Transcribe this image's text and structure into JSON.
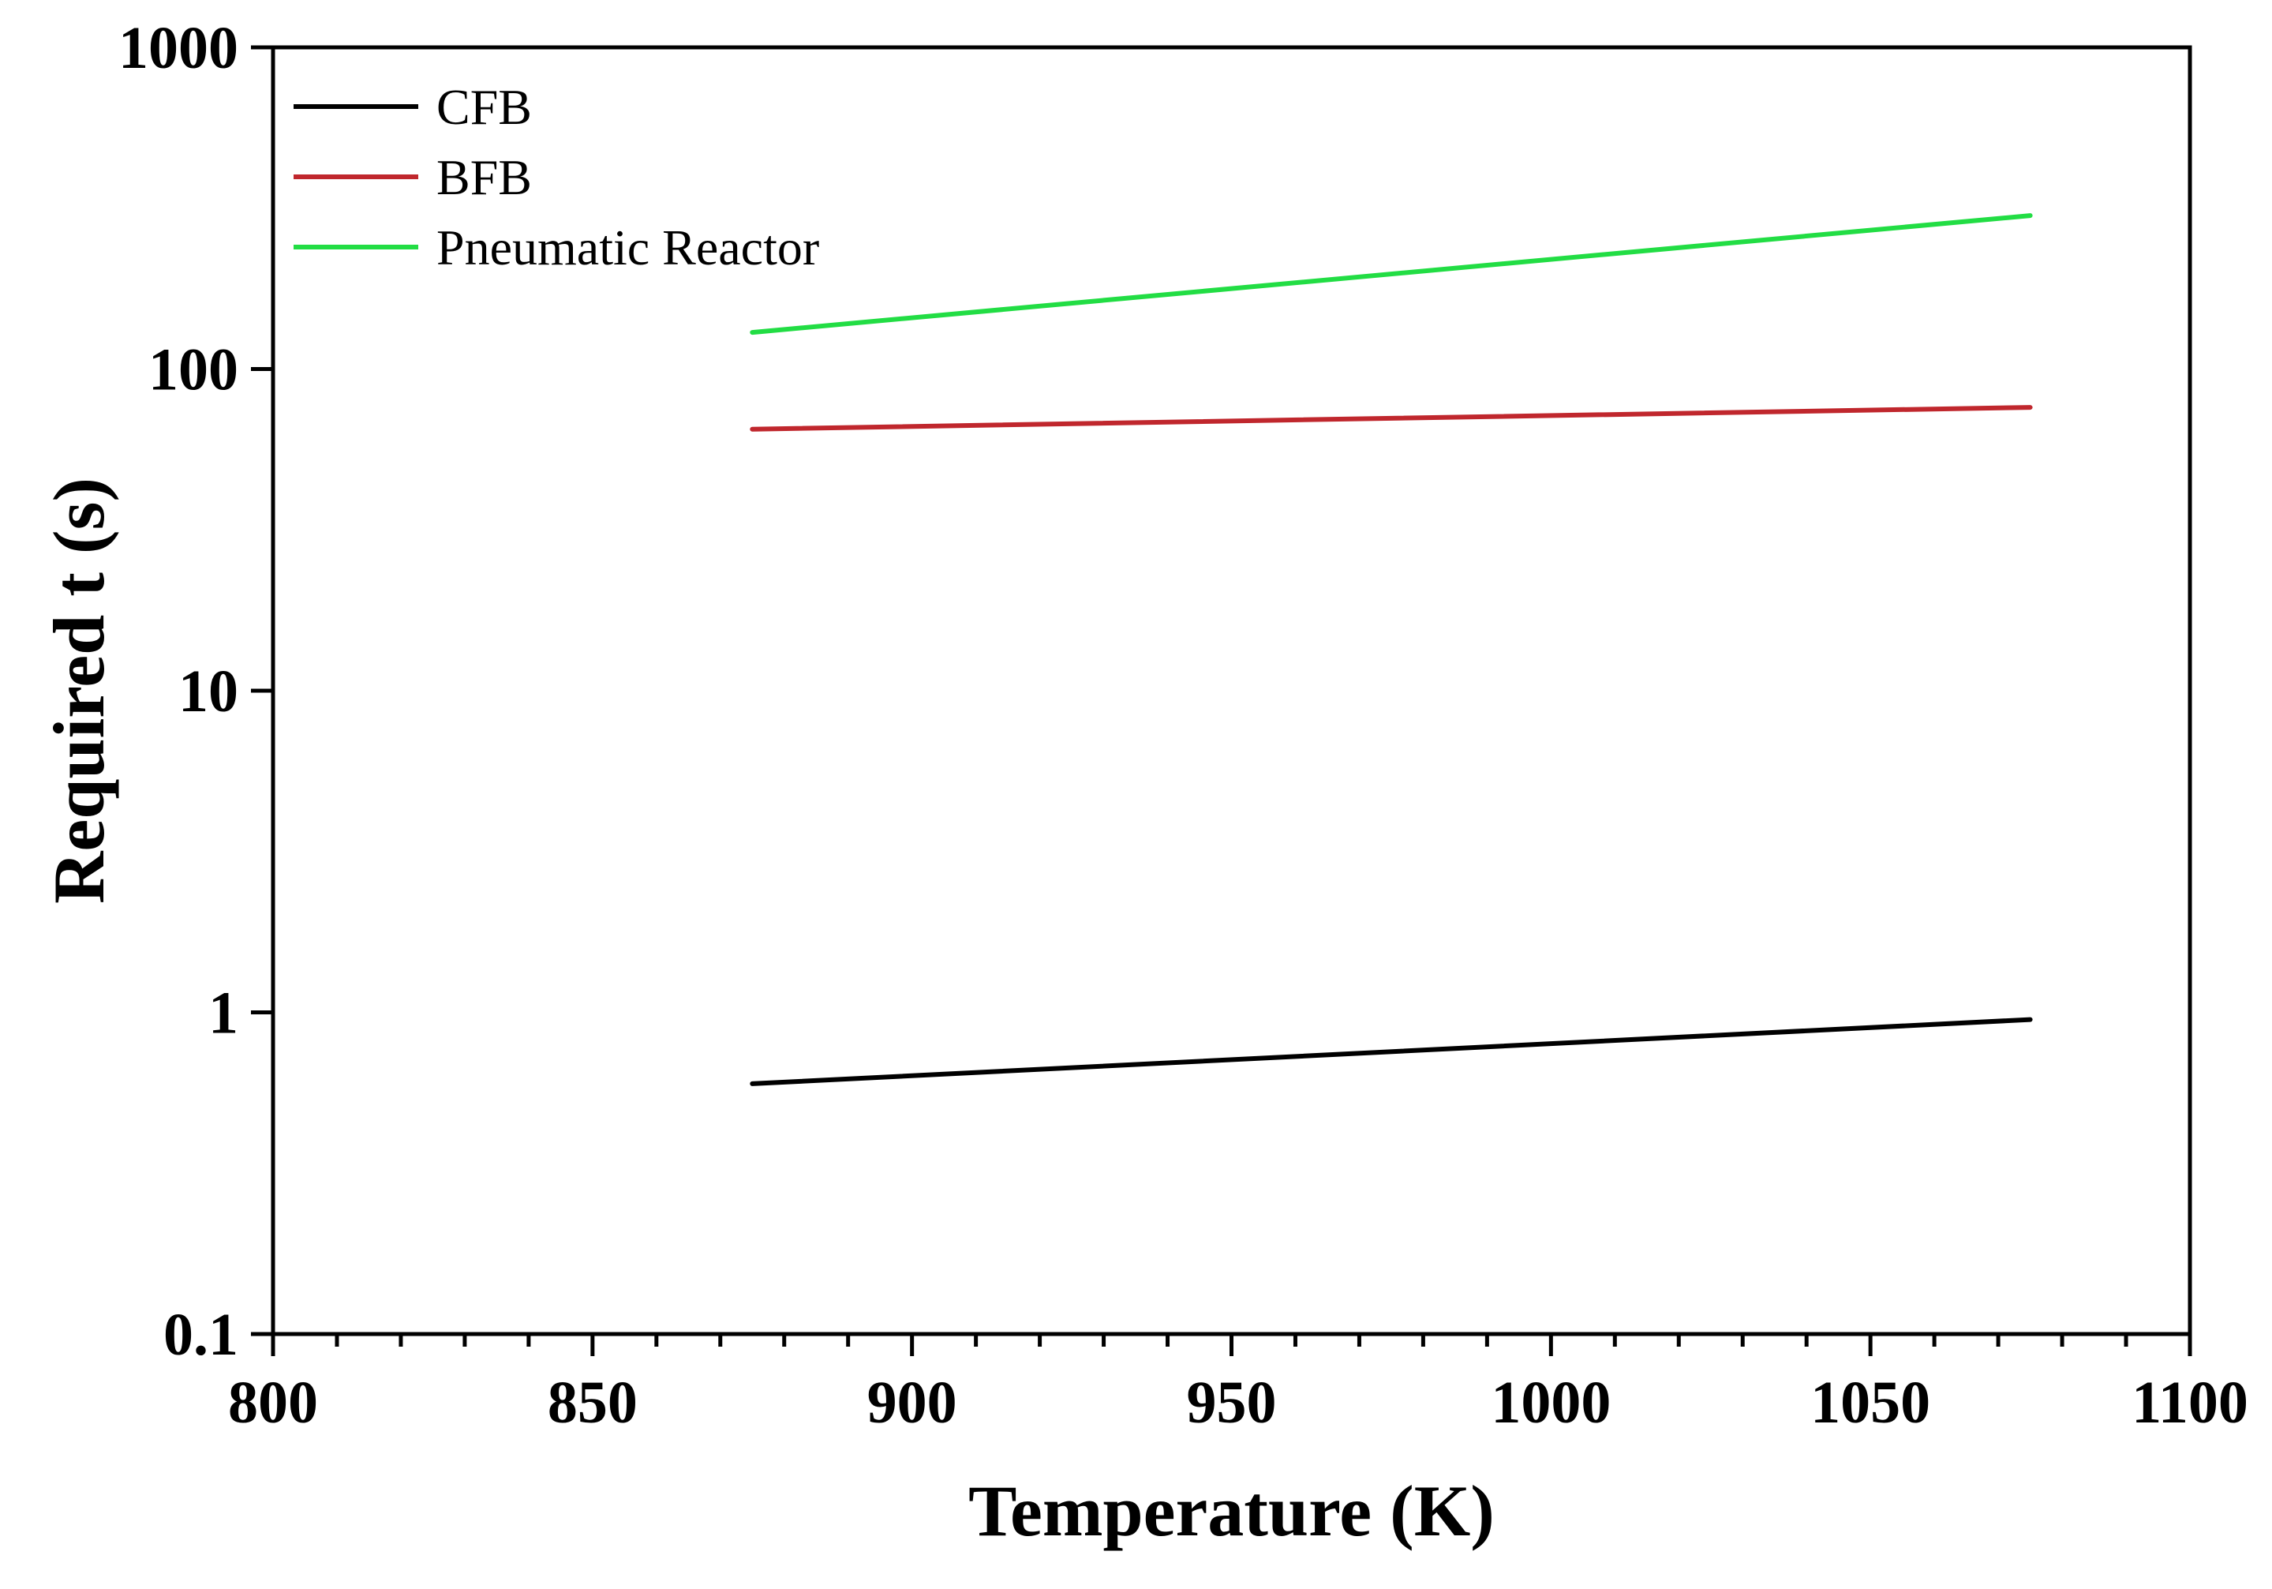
{
  "chart_data": {
    "type": "line",
    "title": "",
    "xlabel": "Temperature (K)",
    "ylabel": "Required t (s)",
    "xlim": [
      800,
      1100
    ],
    "ylim": [
      0.1,
      1000
    ],
    "yscale": "log",
    "x_ticks": [
      "800",
      "850",
      "900",
      "950",
      "1000",
      "1050",
      "1100"
    ],
    "y_ticks": [
      "0.1",
      "1",
      "10",
      "100",
      "1000"
    ],
    "legend_position": "top-left",
    "series": [
      {
        "name": "CFB",
        "color": "#000000",
        "x": [
          875,
          1075
        ],
        "y": [
          0.6,
          0.95
        ]
      },
      {
        "name": "BFB",
        "color": "#c0272d",
        "x": [
          875,
          1075
        ],
        "y": [
          65,
          76
        ]
      },
      {
        "name": "Pneumatic Reactor",
        "color": "#22dd44",
        "x": [
          875,
          1075
        ],
        "y": [
          130,
          300
        ]
      }
    ]
  }
}
